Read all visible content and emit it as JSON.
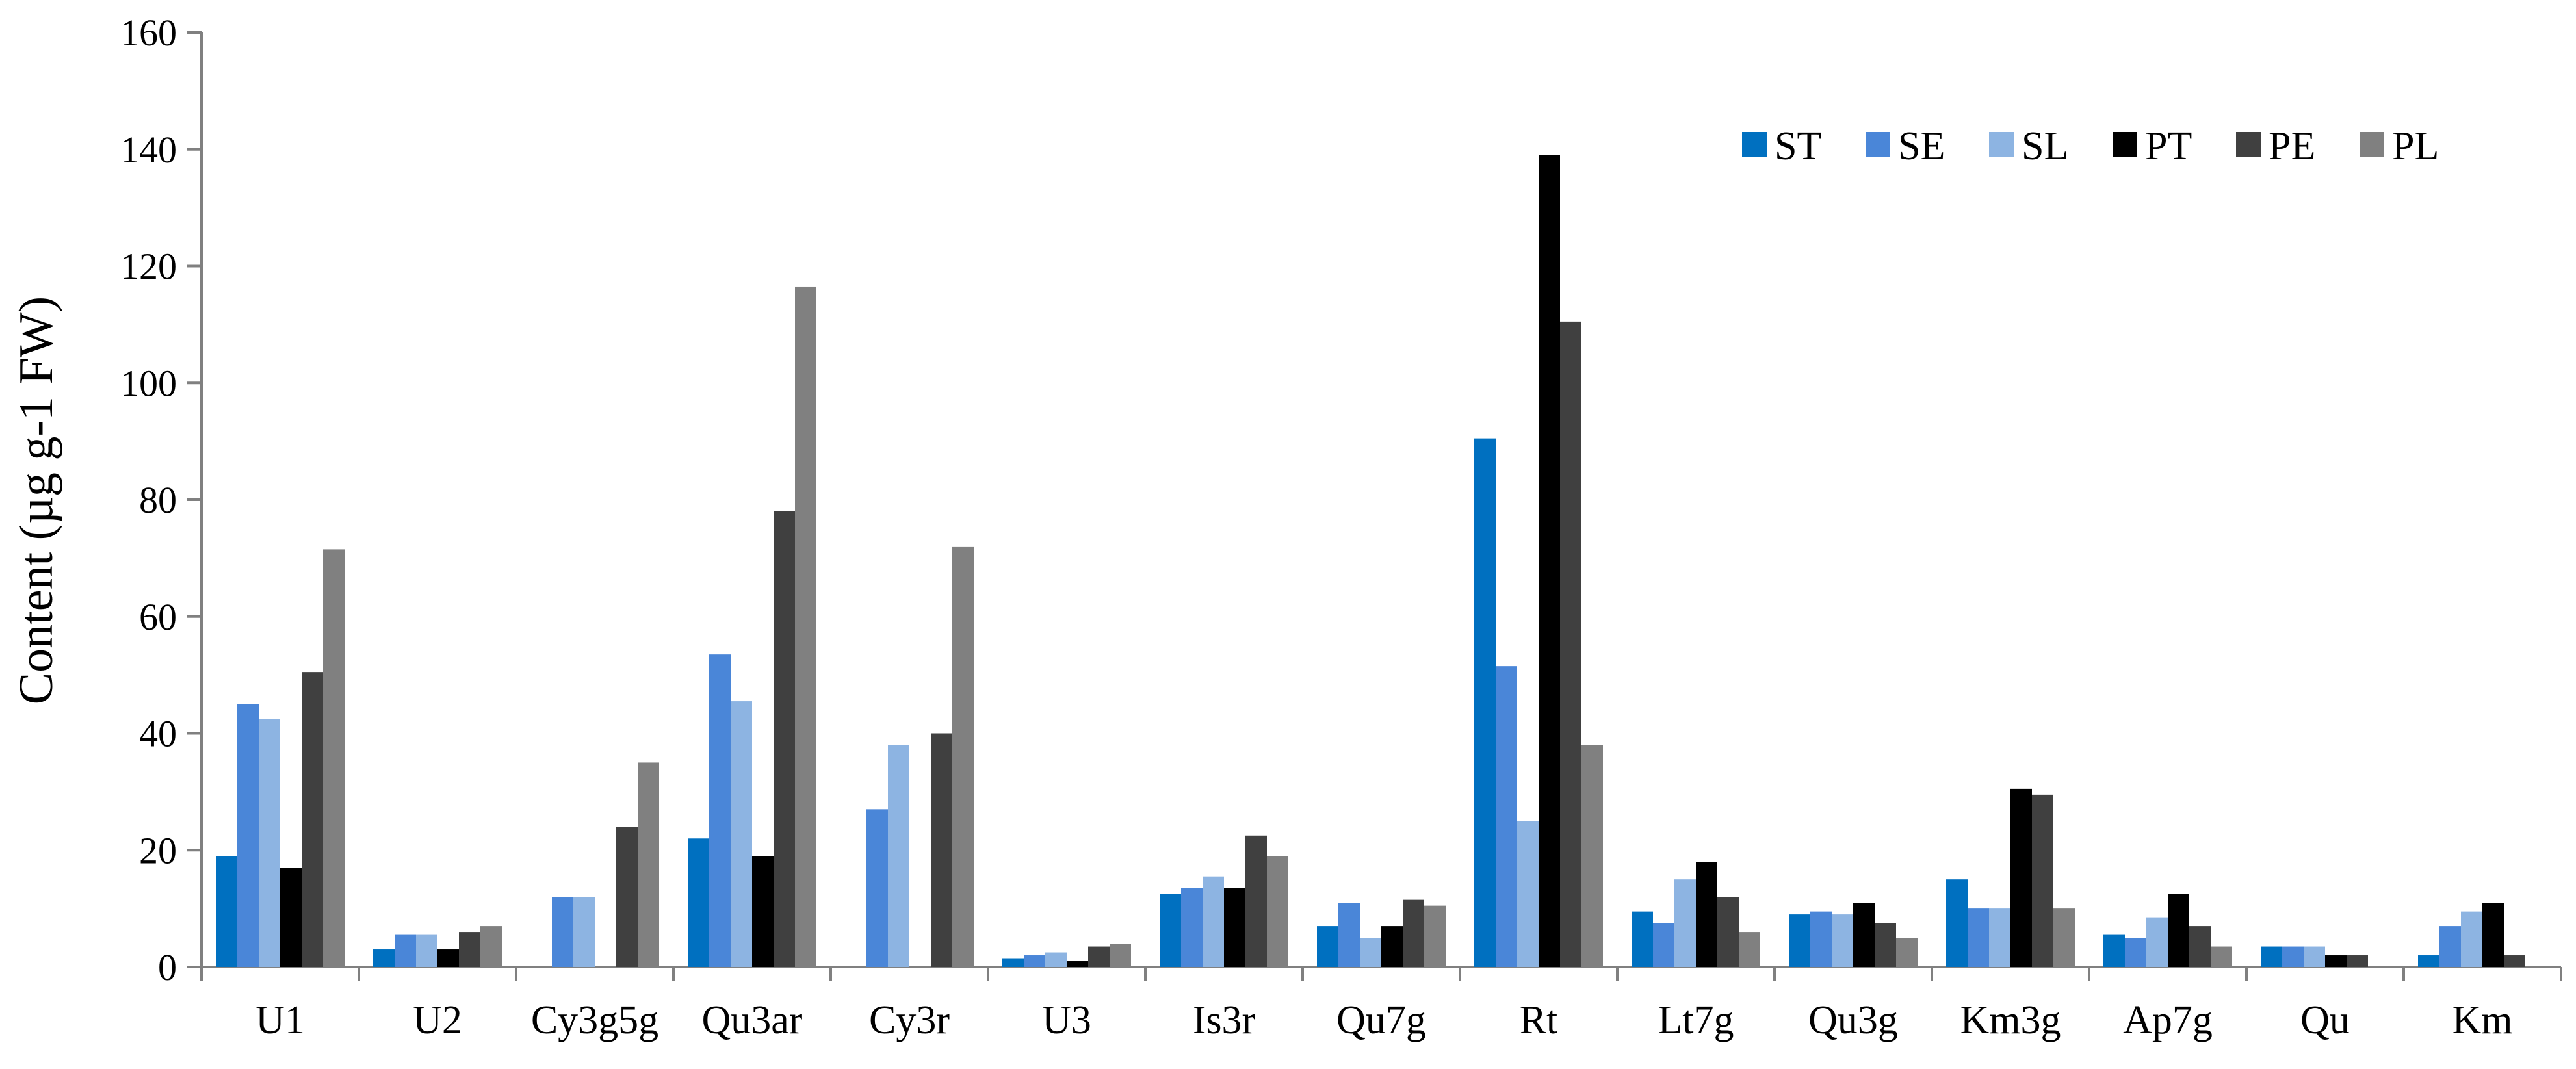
{
  "chart_data": {
    "type": "bar",
    "title": "",
    "xlabel": "",
    "ylabel": "Content (µg g-1 FW)",
    "ylim": [
      0,
      160
    ],
    "yticks": [
      0,
      20,
      40,
      60,
      80,
      100,
      120,
      140,
      160
    ],
    "grid": false,
    "legend_position": "top-right",
    "categories": [
      "U1",
      "U2",
      "Cy3g5g",
      "Qu3ar",
      "Cy3r",
      "U3",
      "Is3r",
      "Qu7g",
      "Rt",
      "Lt7g",
      "Qu3g",
      "Km3g",
      "Ap7g",
      "Qu",
      "Km"
    ],
    "series": [
      {
        "name": "ST",
        "color": "#0070C0",
        "values": [
          19,
          3,
          0,
          22,
          0,
          1.5,
          12.5,
          7,
          90.5,
          9.5,
          9,
          15,
          5.5,
          3.5,
          2
        ]
      },
      {
        "name": "SE",
        "color": "#4A86D8",
        "values": [
          45,
          5.5,
          12,
          53.5,
          27,
          2,
          13.5,
          11,
          51.5,
          7.5,
          9.5,
          10,
          5,
          3.5,
          7
        ]
      },
      {
        "name": "SL",
        "color": "#8DB4E2",
        "values": [
          42.5,
          5.5,
          12,
          45.5,
          38,
          2.5,
          15.5,
          5,
          25,
          15,
          9,
          10,
          8.5,
          3.5,
          9.5
        ]
      },
      {
        "name": "PT",
        "color": "#000000",
        "values": [
          17,
          3,
          0,
          19,
          0,
          1,
          13.5,
          7,
          139,
          18,
          11,
          30.5,
          12.5,
          2,
          11
        ]
      },
      {
        "name": "PE",
        "color": "#404040",
        "values": [
          50.5,
          6,
          24,
          78,
          40,
          3.5,
          22.5,
          11.5,
          110.5,
          12,
          7.5,
          29.5,
          7,
          2,
          2
        ]
      },
      {
        "name": "PL",
        "color": "#808080",
        "values": [
          71.5,
          7,
          35,
          116.5,
          72,
          4,
          19,
          10.5,
          38,
          6,
          5,
          10,
          3.5,
          0,
          0
        ]
      }
    ]
  }
}
